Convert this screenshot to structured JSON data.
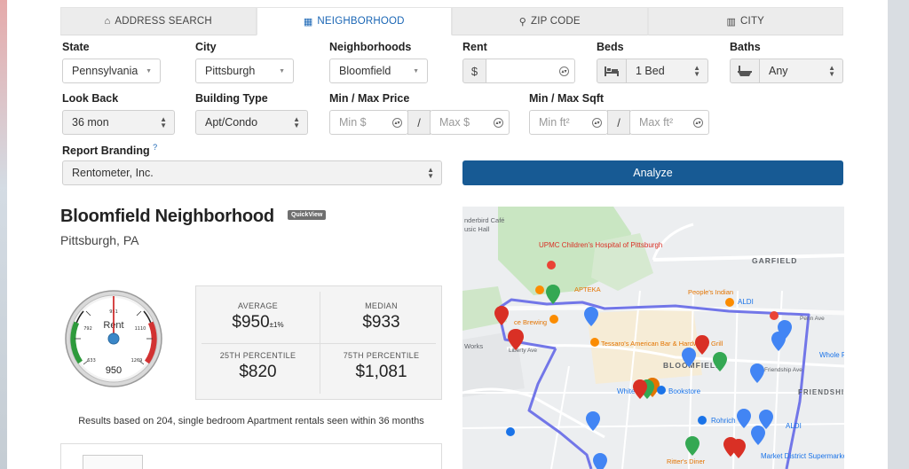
{
  "tabs": [
    {
      "label": "ADDRESS SEARCH",
      "icon": "home-icon"
    },
    {
      "label": "NEIGHBORHOOD",
      "icon": "building-icon"
    },
    {
      "label": "ZIP CODE",
      "icon": "map-pin-icon"
    },
    {
      "label": "CITY",
      "icon": "city-icon"
    }
  ],
  "form": {
    "state": {
      "label": "State",
      "value": "Pennsylvania"
    },
    "city": {
      "label": "City",
      "value": "Pittsburgh"
    },
    "neighborhoods": {
      "label": "Neighborhoods",
      "value": "Bloomfield"
    },
    "rent": {
      "label": "Rent",
      "prefix": "$",
      "value": ""
    },
    "beds": {
      "label": "Beds",
      "value": "1 Bed"
    },
    "baths": {
      "label": "Baths",
      "value": "Any"
    },
    "look_back": {
      "label": "Look Back",
      "value": "36 mon"
    },
    "building_type": {
      "label": "Building Type",
      "value": "Apt/Condo"
    },
    "price": {
      "label": "Min / Max Price",
      "min_placeholder": "Min $",
      "max_placeholder": "Max $",
      "separator": "/"
    },
    "sqft": {
      "label": "Min / Max Sqft",
      "min_placeholder": "Min ft²",
      "max_placeholder": "Max ft²",
      "separator": "/"
    },
    "branding": {
      "label": "Report Branding",
      "value": "Rentometer, Inc."
    },
    "analyze_label": "Analyze"
  },
  "report": {
    "title": "Bloomfield Neighborhood",
    "badge": "QuickView",
    "location": "Pittsburgh, PA",
    "gauge": {
      "title": "Rent",
      "value": "950",
      "ticks": [
        "633",
        "792",
        "951",
        "1110",
        "1269"
      ],
      "needle_fraction": 0.5
    },
    "stats": {
      "average_label": "AVERAGE",
      "average": "$950",
      "average_pm": "±1%",
      "median_label": "MEDIAN",
      "median": "$933",
      "p25_label": "25TH PERCENTILE",
      "p25": "$820",
      "p75_label": "75TH PERCENTILE",
      "p75": "$1,081"
    },
    "note": "Results based on 204, single bedroom Apartment rentals seen within 36 months"
  },
  "map": {
    "labels": {
      "cafe": "nderbird Café",
      "music": "usic Hall",
      "hospital": "UPMC Children's Hospital of Pittsburgh",
      "apteka": "APTEKA",
      "peoples": "People's Indian",
      "aldi_top": "ALDI",
      "garfield": "GARFIELD",
      "brewing": "ce Brewing",
      "tessaro": "Tessaro's American Bar & Hardwood Grill",
      "bloomfield": "BLOOMFIELD",
      "white": "White",
      "bookstore": "Bookstore",
      "wholefoods": "Whole Fo",
      "friendship": "FRIENDSHIP",
      "rohrich": "Rohrich",
      "aldi_bot": "ALDI",
      "ritters": "Ritter's Diner",
      "market": "Market District Supermarket",
      "works": "Works",
      "penn_ave": "Penn Ave",
      "liberty": "Liberty Ave",
      "friendship_ave": "Friendship Ave"
    }
  }
}
